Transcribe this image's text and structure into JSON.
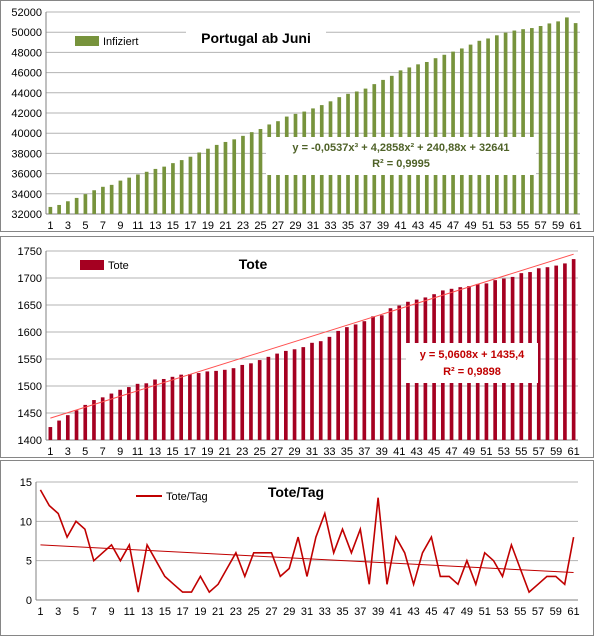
{
  "chart_data": [
    {
      "type": "bar",
      "title": "Portugal ab Juni",
      "legend": [
        "Infiziert"
      ],
      "legend_placement": "top-left",
      "color": "#77933c",
      "trendline_color": "#4f6228",
      "categories": [
        1,
        2,
        3,
        4,
        5,
        6,
        7,
        8,
        9,
        10,
        11,
        12,
        13,
        14,
        15,
        16,
        17,
        18,
        19,
        20,
        21,
        22,
        23,
        24,
        25,
        26,
        27,
        28,
        29,
        30,
        31,
        32,
        33,
        34,
        35,
        36,
        37,
        38,
        39,
        40,
        41,
        42,
        43,
        44,
        45,
        46,
        47,
        48,
        49,
        50,
        51,
        52,
        53,
        54,
        55,
        56,
        57,
        58,
        59,
        60,
        61
      ],
      "tick_labels": [
        "1",
        "3",
        "5",
        "7",
        "9",
        "11",
        "13",
        "15",
        "17",
        "19",
        "21",
        "23",
        "25",
        "27",
        "29",
        "31",
        "33",
        "35",
        "37",
        "39",
        "41",
        "43",
        "45",
        "47",
        "49",
        "51",
        "53",
        "55",
        "57",
        "59",
        "61"
      ],
      "series": [
        {
          "name": "Infiziert",
          "values": [
            32700,
            32895,
            33261,
            33592,
            33969,
            34351,
            34693,
            34885,
            35306,
            35600,
            35910,
            36180,
            36463,
            36690,
            37036,
            37336,
            37672,
            38089,
            38464,
            38841,
            39133,
            39392,
            39737,
            40104,
            40415,
            40866,
            41189,
            41646,
            41912,
            42141,
            42454,
            42782,
            43156,
            43569,
            43897,
            44129,
            44416,
            44859,
            45277,
            45679,
            46221,
            46512,
            46818,
            47051,
            47426,
            47765,
            48077,
            48390,
            48771,
            49150,
            49379,
            49692,
            49955,
            50164,
            50299,
            50410,
            50613,
            50868,
            51072,
            51463,
            50900
          ]
        }
      ],
      "trendline": {
        "label": "y = -0,0537x³ + 4,2858x² + 240,88x + 32641",
        "r2": "R² = 0,9995"
      },
      "ylim": [
        32000,
        52000
      ],
      "yticks": [
        32000,
        34000,
        36000,
        38000,
        40000,
        42000,
        44000,
        46000,
        48000,
        50000,
        52000
      ],
      "grid": true
    },
    {
      "type": "bar",
      "title": "Tote",
      "legend": [
        "Tote"
      ],
      "legend_placement": "top-left",
      "color": "#a50021",
      "trendline_color": "#ff5050",
      "categories": [
        1,
        2,
        3,
        4,
        5,
        6,
        7,
        8,
        9,
        10,
        11,
        12,
        13,
        14,
        15,
        16,
        17,
        18,
        19,
        20,
        21,
        22,
        23,
        24,
        25,
        26,
        27,
        28,
        29,
        30,
        31,
        32,
        33,
        34,
        35,
        36,
        37,
        38,
        39,
        40,
        41,
        42,
        43,
        44,
        45,
        46,
        47,
        48,
        49,
        50,
        51,
        52,
        53,
        54,
        55,
        56,
        57,
        58,
        59,
        60,
        61
      ],
      "tick_labels": [
        "1",
        "3",
        "5",
        "7",
        "9",
        "11",
        "13",
        "15",
        "17",
        "19",
        "21",
        "23",
        "25",
        "27",
        "29",
        "31",
        "33",
        "35",
        "37",
        "39",
        "41",
        "43",
        "45",
        "47",
        "49",
        "51",
        "53",
        "55",
        "57",
        "59",
        "61"
      ],
      "series": [
        {
          "name": "Tote",
          "values": [
            1424,
            1436,
            1446,
            1455,
            1465,
            1474,
            1479,
            1486,
            1493,
            1498,
            1504,
            1505,
            1512,
            1513,
            1517,
            1521,
            1522,
            1524,
            1527,
            1528,
            1530,
            1533,
            1539,
            1542,
            1548,
            1554,
            1560,
            1565,
            1568,
            1572,
            1580,
            1583,
            1591,
            1602,
            1609,
            1614,
            1620,
            1629,
            1631,
            1644,
            1649,
            1656,
            1660,
            1664,
            1670,
            1677,
            1680,
            1683,
            1685,
            1689,
            1690,
            1696,
            1699,
            1702,
            1709,
            1711,
            1718,
            1720,
            1723,
            1727,
            1735
          ]
        }
      ],
      "trendline": {
        "label": "y = 5,0608x + 1435,4",
        "r2": "R² = 0,9898"
      },
      "ylim": [
        1400,
        1750
      ],
      "yticks": [
        1400,
        1450,
        1500,
        1550,
        1600,
        1650,
        1700,
        1750
      ],
      "grid": true
    },
    {
      "type": "line",
      "title": "Tote/Tag",
      "legend": [
        "Tote/Tag"
      ],
      "legend_placement": "top-center",
      "color": "#c00000",
      "categories": [
        1,
        2,
        3,
        4,
        5,
        6,
        7,
        8,
        9,
        10,
        11,
        12,
        13,
        14,
        15,
        16,
        17,
        18,
        19,
        20,
        21,
        22,
        23,
        24,
        25,
        26,
        27,
        28,
        29,
        30,
        31,
        32,
        33,
        34,
        35,
        36,
        37,
        38,
        39,
        40,
        41,
        42,
        43,
        44,
        45,
        46,
        47,
        48,
        49,
        50,
        51,
        52,
        53,
        54,
        55,
        56,
        57,
        58,
        59,
        60,
        61
      ],
      "tick_labels": [
        "1",
        "3",
        "5",
        "7",
        "9",
        "11",
        "13",
        "15",
        "17",
        "19",
        "21",
        "23",
        "25",
        "27",
        "29",
        "31",
        "33",
        "35",
        "37",
        "39",
        "41",
        "43",
        "45",
        "47",
        "49",
        "51",
        "53",
        "55",
        "57",
        "59",
        "61"
      ],
      "series": [
        {
          "name": "Tote/Tag",
          "values": [
            14,
            12,
            11,
            8,
            10,
            9,
            5,
            6,
            7,
            5,
            7,
            1,
            7,
            5,
            3,
            2,
            1,
            1,
            3,
            1,
            2,
            4,
            6,
            3,
            6,
            6,
            6,
            3,
            4,
            8,
            3,
            8,
            11,
            6,
            9,
            6,
            9,
            2,
            13,
            2,
            8,
            6,
            2,
            6,
            8,
            3,
            3,
            2,
            5,
            2,
            6,
            5,
            3,
            7,
            4,
            1,
            2,
            3,
            3,
            2,
            8
          ]
        }
      ],
      "trendline": {
        "from": 7,
        "to": 3.5
      },
      "ylim": [
        0,
        15
      ],
      "yticks": [
        0,
        5,
        10,
        15
      ],
      "grid": true
    }
  ]
}
